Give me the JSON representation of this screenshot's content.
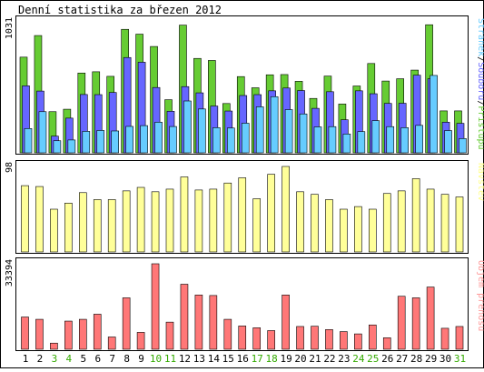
{
  "chart_data": [
    {
      "type": "bar",
      "title": "Denní statistika za březen 2012",
      "ymax_label": "1031",
      "ylim": [
        0,
        1031
      ],
      "legend": [
        {
          "text": "Stránek",
          "color": "#66ccff"
        },
        {
          "text": "/",
          "color": "#000000"
        },
        {
          "text": "Souborů",
          "color": "#6666ff"
        },
        {
          "text": "/",
          "color": "#000000"
        },
        {
          "text": "Přístupů",
          "color": "#66cc33"
        }
      ],
      "categories": [
        "1",
        "2",
        "3",
        "4",
        "5",
        "6",
        "7",
        "8",
        "9",
        "10",
        "11",
        "12",
        "13",
        "14",
        "15",
        "16",
        "17",
        "18",
        "19",
        "20",
        "21",
        "22",
        "23",
        "24",
        "25",
        "26",
        "27",
        "28",
        "29",
        "30",
        "31"
      ],
      "series": [
        {
          "name": "Přístupů",
          "color": "#66cc33",
          "values": [
            753,
            923,
            324,
            343,
            628,
            638,
            602,
            972,
            934,
            837,
            418,
            1005,
            743,
            727,
            388,
            600,
            512,
            614,
            616,
            563,
            428,
            604,
            384,
            526,
            703,
            565,
            583,
            651,
            1008,
            330,
            330
          ]
        },
        {
          "name": "Souborů",
          "color": "#6666ff",
          "values": [
            527,
            486,
            131,
            273,
            459,
            458,
            475,
            750,
            713,
            514,
            327,
            521,
            472,
            368,
            329,
            451,
            458,
            488,
            510,
            490,
            350,
            481,
            260,
            488,
            465,
            389,
            390,
            611,
            583,
            241,
            232
          ]
        },
        {
          "name": "Stránek",
          "color": "#66ccff",
          "values": [
            191,
            324,
            95,
            101,
            169,
            176,
            172,
            208,
            214,
            241,
            207,
            408,
            345,
            198,
            195,
            233,
            362,
            442,
            340,
            306,
            204,
            206,
            148,
            167,
            253,
            206,
            198,
            216,
            609,
            175,
            112
          ]
        }
      ]
    },
    {
      "type": "bar",
      "ymax_label": "98",
      "ylim": [
        0,
        98
      ],
      "legend": [
        {
          "text": "Návštěv",
          "color": "#ffff88"
        }
      ],
      "categories": [
        "1",
        "2",
        "3",
        "4",
        "5",
        "6",
        "7",
        "8",
        "9",
        "10",
        "11",
        "12",
        "13",
        "14",
        "15",
        "16",
        "17",
        "18",
        "19",
        "20",
        "21",
        "22",
        "23",
        "24",
        "25",
        "26",
        "27",
        "28",
        "29",
        "30",
        "31"
      ],
      "series": [
        {
          "name": "Návštěv",
          "color": "#ffff99",
          "values": [
            76,
            75,
            49,
            56,
            68,
            60,
            60,
            70,
            74,
            69,
            72,
            86,
            71,
            72,
            79,
            85,
            61,
            89,
            98,
            69,
            66,
            60,
            49,
            52,
            49,
            67,
            70,
            84,
            72,
            66,
            63
          ]
        }
      ]
    },
    {
      "type": "bar",
      "ymax_label": "33394",
      "ylim": [
        0,
        33394
      ],
      "legend": [
        {
          "text": "Objem přenosů",
          "color": "#ff9999"
        }
      ],
      "categories": [
        "1",
        "2",
        "3",
        "4",
        "5",
        "6",
        "7",
        "8",
        "9",
        "10",
        "11",
        "12",
        "13",
        "14",
        "15",
        "16",
        "17",
        "18",
        "19",
        "20",
        "21",
        "22",
        "23",
        "24",
        "25",
        "26",
        "27",
        "28",
        "29",
        "30",
        "31"
      ],
      "series": [
        {
          "name": "Objem přenosů",
          "color": "#ff7777",
          "values": [
            12600,
            11700,
            2400,
            11000,
            11700,
            13700,
            4800,
            20100,
            6600,
            33394,
            10600,
            25400,
            21200,
            21000,
            11700,
            9100,
            8400,
            7300,
            21200,
            8900,
            9000,
            7700,
            6900,
            6000,
            9500,
            4500,
            20700,
            20100,
            24300,
            8200,
            8900
          ]
        }
      ]
    }
  ],
  "x_labels_weekend": [
    "3",
    "4",
    "10",
    "11",
    "17",
    "18",
    "24",
    "25",
    "31"
  ],
  "colors": {
    "weekday_label": "#000000",
    "weekend_label": "#33aa00",
    "frame": "#000000",
    "panel_bg": "#ffffff"
  }
}
